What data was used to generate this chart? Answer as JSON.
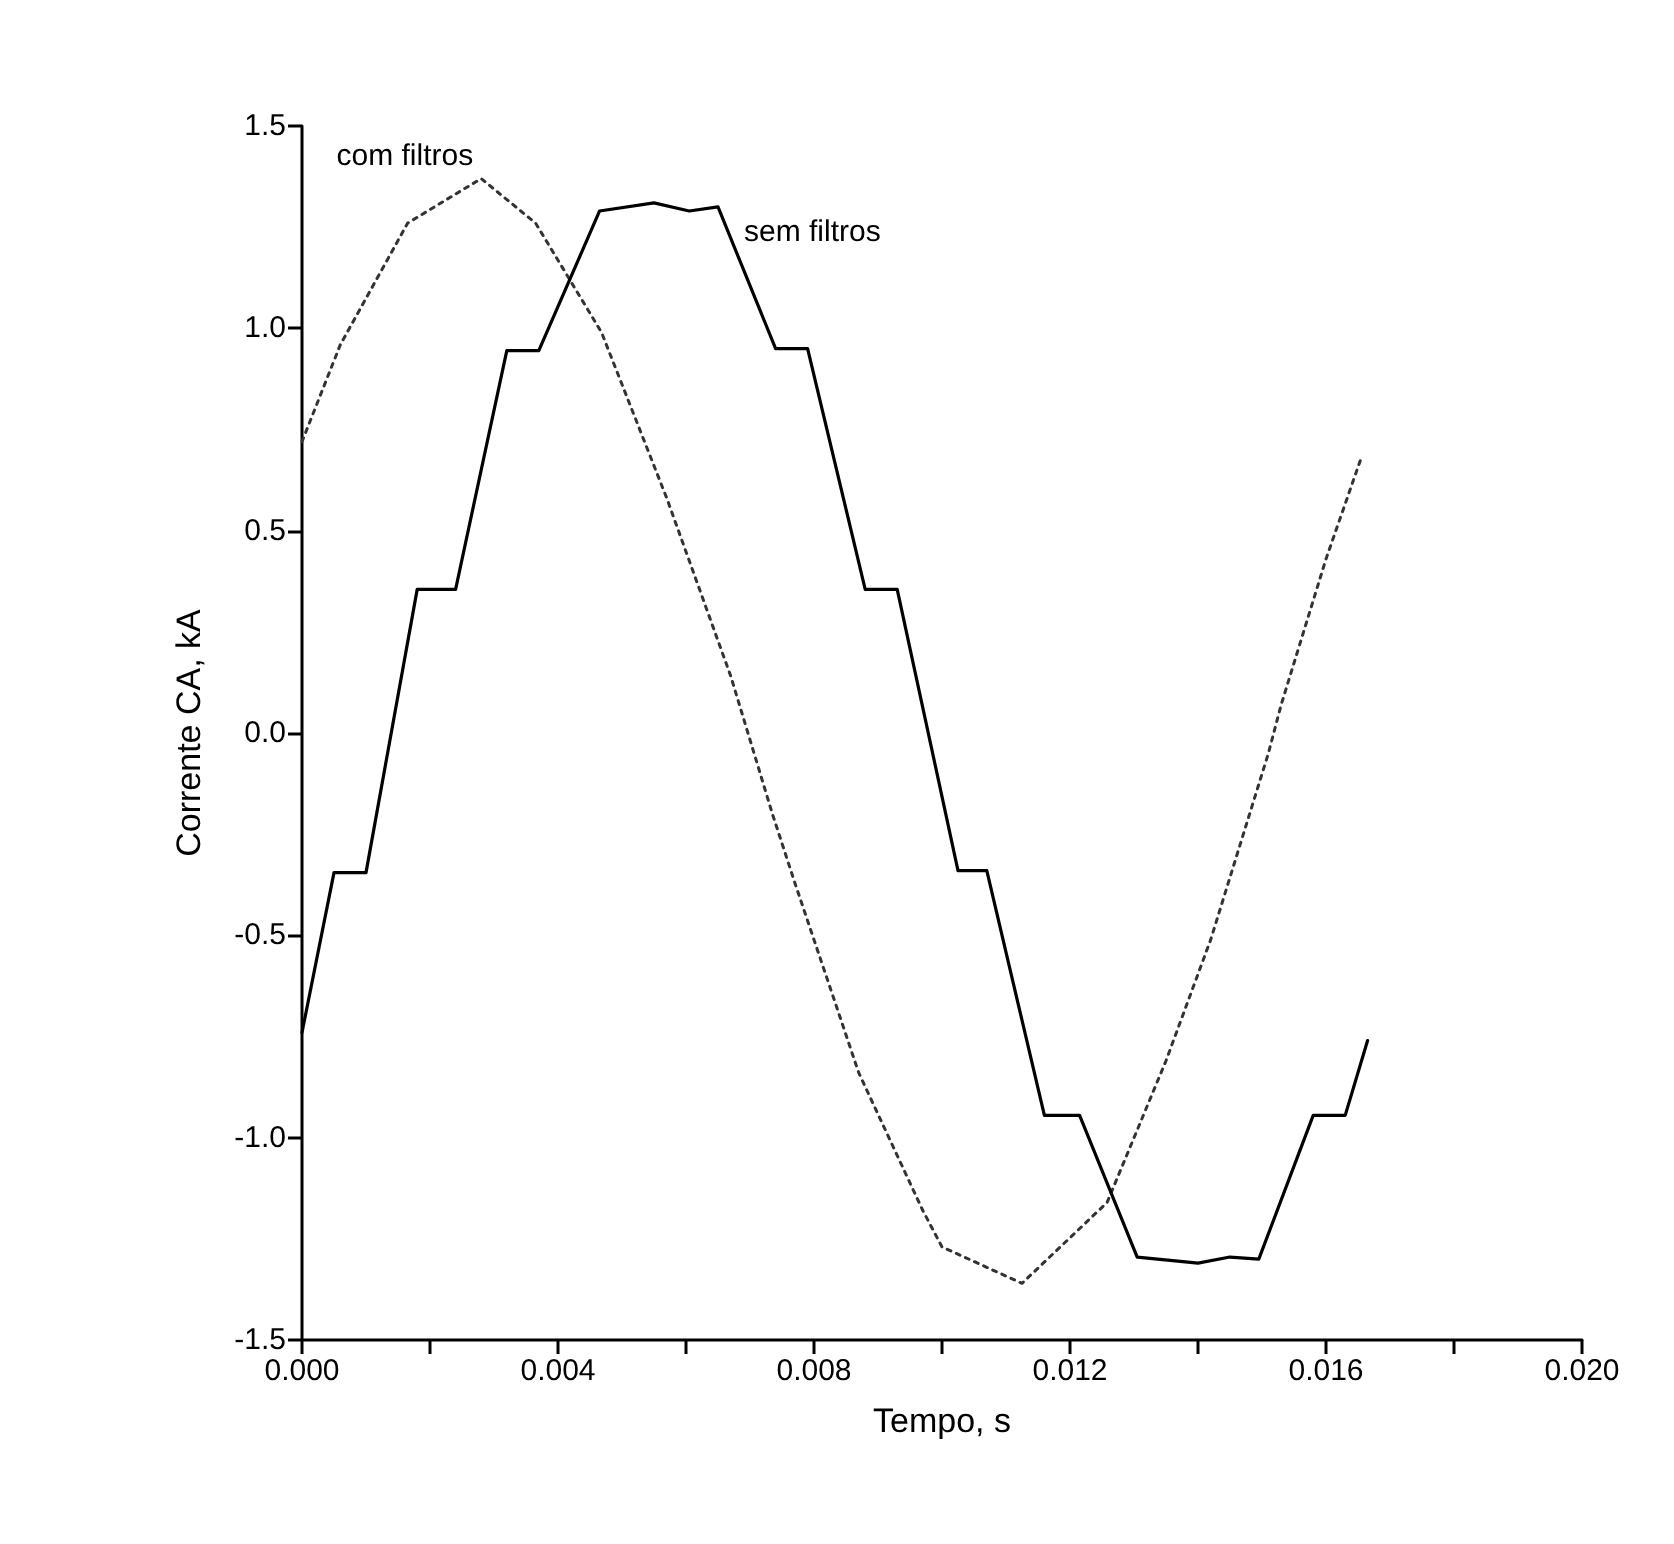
{
  "chart_data": {
    "type": "line",
    "xlabel": "Tempo, s",
    "ylabel": "Corrente CA, kA",
    "xlim": [
      0,
      0.02
    ],
    "ylim": [
      -1.5,
      1.5
    ],
    "xticks": [
      {
        "value": 0,
        "label": "0.000"
      },
      {
        "value": 0.002,
        "label": null
      },
      {
        "value": 0.004,
        "label": "0.004"
      },
      {
        "value": 0.006,
        "label": null
      },
      {
        "value": 0.008,
        "label": "0.008"
      },
      {
        "value": 0.01,
        "label": null
      },
      {
        "value": 0.012,
        "label": "0.012"
      },
      {
        "value": 0.014,
        "label": null
      },
      {
        "value": 0.016,
        "label": "0.016"
      },
      {
        "value": 0.018,
        "label": null
      },
      {
        "value": 0.02,
        "label": "0.020"
      }
    ],
    "yticks": [
      {
        "value": -1.5,
        "label": "-1.5"
      },
      {
        "value": -1,
        "label": "-1.0"
      },
      {
        "value": -0.5,
        "label": "-0.5"
      },
      {
        "value": 0,
        "label": "0.0"
      },
      {
        "value": 0.5,
        "label": "0.5"
      },
      {
        "value": 1,
        "label": "1.0"
      },
      {
        "value": 1.5,
        "label": "1.5"
      }
    ],
    "grid": false,
    "legend": false,
    "marker": "none",
    "series": [
      {
        "name": "com filtros",
        "color": "#333333",
        "line_style": "dotted",
        "x": [
          0,
          0.0006,
          0.00165,
          0.0028,
          0.00365,
          0.00468,
          0.0057,
          0.0067,
          0.00735,
          0.0077,
          0.0087,
          0.0097,
          0.01,
          0.01125,
          0.01258,
          0.0135,
          0.0142,
          0.0151,
          0.0153,
          0.016,
          0.01655
        ],
        "values": [
          0.72,
          0.96,
          1.26,
          1.37,
          1.26,
          0.99,
          0.58,
          0.14,
          -0.2,
          -0.37,
          -0.84,
          -1.18,
          -1.27,
          -1.36,
          -1.16,
          -0.81,
          -0.51,
          -0.05,
          0.07,
          0.43,
          0.68
        ]
      },
      {
        "name": "sem filtros",
        "color": "#000000",
        "line_style": "solid",
        "x": [
          0,
          0.0005,
          0.001,
          0.0018,
          0.0024,
          0.0032,
          0.0037,
          0.00465,
          0.0055,
          0.00605,
          0.0065,
          0.0074,
          0.0079,
          0.0088,
          0.0093,
          0.01025,
          0.0107,
          0.0116,
          0.01215,
          0.01305,
          0.014,
          0.0145,
          0.01495,
          0.0158,
          0.0163,
          0.01665
        ],
        "values": [
          -0.74,
          -0.345,
          -0.345,
          0.355,
          0.355,
          0.945,
          0.945,
          1.29,
          1.31,
          1.29,
          1.3,
          0.95,
          0.95,
          0.355,
          0.355,
          -0.34,
          -0.34,
          -0.945,
          -0.945,
          -1.295,
          -1.31,
          -1.295,
          -1.3,
          -0.945,
          -0.945,
          -0.76
        ]
      }
    ]
  }
}
